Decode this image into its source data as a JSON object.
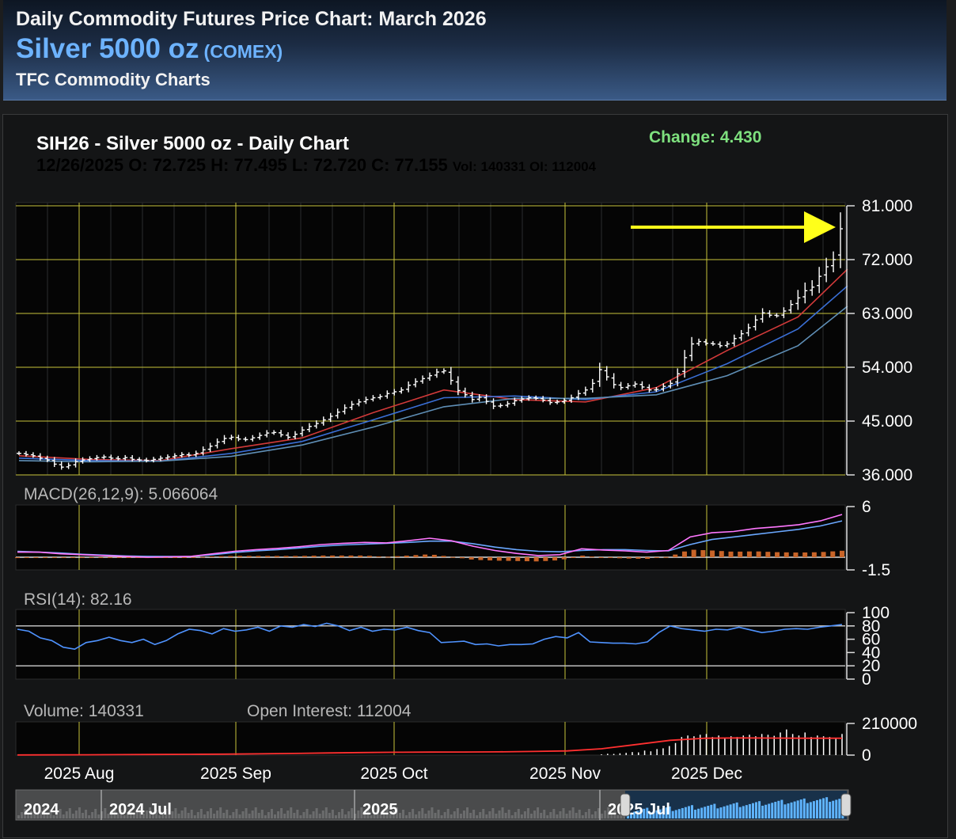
{
  "header": {
    "line1": "Daily Commodity Futures Price Chart: March 2026",
    "product": "Silver 5000 oz",
    "exchange": "(COMEX)",
    "line3": "TFC Commodity Charts"
  },
  "chart_header": {
    "title": "SIH26 - Silver 5000 oz - Daily Chart",
    "ohlc": "12/26/2025 O: 72.725 H: 77.495 L: 72.720 C: 77.155",
    "vol_oi": "Vol: 140331 OI: 112004",
    "change": "Change: 4.430"
  },
  "colors": {
    "background": "#141516",
    "grid_major": "#c8c43a",
    "price_bar": "#ffffff",
    "ma_short": "#d23a3a",
    "ma_mid": "#3a6fd6",
    "ma_long": "#5f8fb6",
    "macd_line": "#ff77ff",
    "macd_signal": "#6aa8ff",
    "macd_hist": "#c86428",
    "rsi": "#4f93ff",
    "volume_bar": "#ffffff",
    "open_interest": "#ff3030",
    "annotation_arrow": "#ffff1a"
  },
  "chart_data": {
    "type": "line",
    "price_panel": {
      "y_ticks": [
        "81.000",
        "72.000",
        "63.000",
        "54.000",
        "45.000",
        "36.000"
      ],
      "ylim": [
        36,
        81
      ],
      "x_ticks": [
        "2025 Aug",
        "2025 Sep",
        "2025 Oct",
        "2025 Nov",
        "2025 Dec"
      ],
      "series_close": [
        39.6,
        39.4,
        39.2,
        38.8,
        38.5,
        37.8,
        37.3,
        37.6,
        38.2,
        38.5,
        38.7,
        38.9,
        39.0,
        38.8,
        38.7,
        38.9,
        38.6,
        38.5,
        38.4,
        38.6,
        38.8,
        39.0,
        39.2,
        39.4,
        39.3,
        39.6,
        40.2,
        40.8,
        41.5,
        42.1,
        42.3,
        42.0,
        41.9,
        42.2,
        42.6,
        43.0,
        43.1,
        42.7,
        42.3,
        42.8,
        43.5,
        44.1,
        44.6,
        45.2,
        45.8,
        46.5,
        47.2,
        47.8,
        48.2,
        48.6,
        48.9,
        49.1,
        49.6,
        49.9,
        50.2,
        51.0,
        51.6,
        52.1,
        52.6,
        53.2,
        53.4,
        51.8,
        50.1,
        49.4,
        48.6,
        49.0,
        48.3,
        47.5,
        47.6,
        47.9,
        48.4,
        48.7,
        48.9,
        48.8,
        48.5,
        48.1,
        48.2,
        48.4,
        48.9,
        49.6,
        50.2,
        51.3,
        53.6,
        52.4,
        51.1,
        50.6,
        50.9,
        51.2,
        50.7,
        50.2,
        50.3,
        50.8,
        51.3,
        52.9,
        55.6,
        57.9,
        58.3,
        58.0,
        57.9,
        57.6,
        57.9,
        58.8,
        59.6,
        60.6,
        61.9,
        63.1,
        62.7,
        62.6,
        63.4,
        64.5,
        65.6,
        66.8,
        67.4,
        69.2,
        70.8,
        72.0,
        77.155
      ],
      "moving_averages": [
        {
          "points": [
            [
              0,
              39.2
            ],
            [
              10,
              38.6
            ],
            [
              20,
              38.4
            ],
            [
              30,
              40.4
            ],
            [
              40,
              42.2
            ],
            [
              50,
              46.4
            ],
            [
              60,
              50.2
            ],
            [
              70,
              48.6
            ],
            [
              80,
              48.2
            ],
            [
              90,
              50.6
            ],
            [
              100,
              56.8
            ],
            [
              110,
              62.4
            ],
            [
              117,
              70.4
            ]
          ]
        },
        {
          "points": [
            [
              0,
              38.8
            ],
            [
              10,
              38.4
            ],
            [
              20,
              38.3
            ],
            [
              30,
              39.6
            ],
            [
              40,
              41.6
            ],
            [
              50,
              45.2
            ],
            [
              60,
              48.9
            ],
            [
              70,
              49.2
            ],
            [
              80,
              48.6
            ],
            [
              90,
              49.9
            ],
            [
              100,
              54.6
            ],
            [
              110,
              60.4
            ],
            [
              117,
              67.6
            ]
          ]
        },
        {
          "points": [
            [
              0,
              38.4
            ],
            [
              10,
              38.2
            ],
            [
              20,
              38.3
            ],
            [
              30,
              39.1
            ],
            [
              40,
              41.0
            ],
            [
              50,
              44.0
            ],
            [
              60,
              47.4
            ],
            [
              70,
              48.8
            ],
            [
              80,
              48.8
            ],
            [
              90,
              49.4
            ],
            [
              100,
              52.6
            ],
            [
              110,
              57.6
            ],
            [
              117,
              64.2
            ]
          ]
        }
      ]
    },
    "macd_panel": {
      "label": "MACD(26,12,9): 5.066064",
      "y_ticks": [
        "6",
        "-1.5"
      ],
      "ylim": [
        -1.5,
        6
      ],
      "macd": [
        0.6,
        0.6,
        0.4,
        0.3,
        0.2,
        0.1,
        0.0,
        0.05,
        0.1,
        0.4,
        0.7,
        0.9,
        1.05,
        1.25,
        1.5,
        1.65,
        1.75,
        1.7,
        1.95,
        2.25,
        1.95,
        1.3,
        0.8,
        0.45,
        0.2,
        0.3,
        1.0,
        0.85,
        0.75,
        0.6,
        0.8,
        2.4,
        2.9,
        3.05,
        3.4,
        3.6,
        3.85,
        4.3,
        5.066
      ],
      "signal": [
        0.7,
        0.6,
        0.5,
        0.35,
        0.25,
        0.15,
        0.1,
        0.08,
        0.1,
        0.3,
        0.55,
        0.75,
        0.9,
        1.1,
        1.3,
        1.45,
        1.55,
        1.65,
        1.75,
        1.9,
        1.9,
        1.6,
        1.2,
        0.9,
        0.7,
        0.65,
        0.8,
        0.9,
        0.9,
        0.8,
        0.75,
        1.5,
        2.1,
        2.4,
        2.7,
        3.0,
        3.3,
        3.7,
        4.3
      ],
      "hist_visible": true
    },
    "rsi_panel": {
      "label": "RSI(14): 82.16",
      "y_ticks": [
        "100",
        "80",
        "60",
        "40",
        "20",
        "0"
      ],
      "ylim": [
        0,
        100
      ],
      "values": [
        75,
        72,
        62,
        58,
        48,
        45,
        55,
        58,
        63,
        58,
        55,
        60,
        52,
        58,
        68,
        75,
        73,
        68,
        76,
        72,
        74,
        78,
        72,
        80,
        78,
        82,
        79,
        84,
        80,
        73,
        78,
        72,
        75,
        74,
        78,
        73,
        70,
        55,
        56,
        57,
        52,
        53,
        50,
        52,
        52,
        53,
        60,
        64,
        62,
        70,
        56,
        55,
        54,
        54,
        53,
        56,
        70,
        80,
        76,
        74,
        72,
        75,
        74,
        78,
        74,
        70,
        72,
        75,
        76,
        75,
        78,
        80,
        82.16
      ]
    },
    "volume_panel": {
      "label_volume": "Volume: 140331",
      "label_oi": "Open Interest: 112004",
      "y_ticks": [
        "210000",
        "0"
      ],
      "ylim": [
        0,
        210000
      ],
      "open_interest": [
        1000,
        1500,
        2000,
        3000,
        4000,
        5000,
        6500,
        8500,
        11000,
        14000,
        17000,
        19000,
        20000,
        20500,
        21500,
        24000,
        28000,
        42000,
        70000,
        98000,
        112000,
        114000,
        113000,
        112000,
        112004
      ],
      "volume_recent": [
        5000,
        9000,
        8000,
        12000,
        15000,
        20000,
        18000,
        30000,
        25000,
        40000,
        45000,
        60000,
        80000,
        120000,
        130000,
        125000,
        135000,
        140000,
        120000,
        130000,
        115000,
        125000,
        120000,
        130000,
        135000,
        125000,
        140000,
        135000,
        128000,
        150000,
        170000,
        140000,
        130000,
        150000,
        120000,
        130000,
        125000,
        120000,
        110000,
        140331
      ]
    },
    "navigator": {
      "labels": [
        "2024",
        "2024 Jul",
        "2025",
        "2025 Jul"
      ]
    }
  }
}
